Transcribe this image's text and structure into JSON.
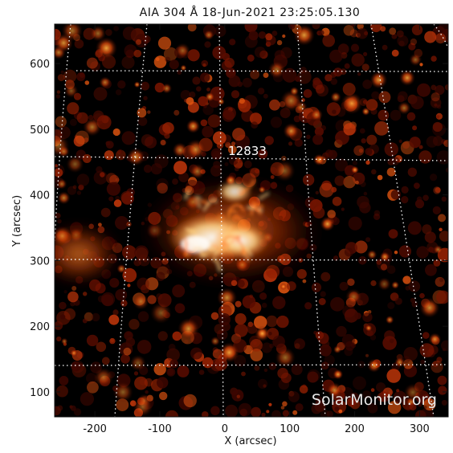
{
  "title": "AIA 304 Å 18-Jun-2021 23:25:05.130",
  "x_axis": {
    "label": "X (arcsec)",
    "ticks": [
      "-200",
      "-100",
      "0",
      "100",
      "200",
      "300"
    ],
    "tick_values": [
      -200,
      -100,
      0,
      100,
      200,
      300
    ],
    "range": [
      -262,
      344
    ]
  },
  "y_axis": {
    "label": "Y (arcsec)",
    "ticks": [
      "100",
      "200",
      "300",
      "400",
      "500",
      "600"
    ],
    "tick_values": [
      100,
      200,
      300,
      400,
      500,
      600
    ],
    "range": [
      62,
      660
    ]
  },
  "active_region": {
    "number": "12833"
  },
  "watermark": "SolarMonitor.org",
  "colors": {
    "background": "#000000",
    "emission_dim": "#5a0c00",
    "emission_mid": "#c83a05",
    "emission_bright": "#ff9a30",
    "emission_core": "#fff2d8",
    "grid": "#ffffff"
  }
}
